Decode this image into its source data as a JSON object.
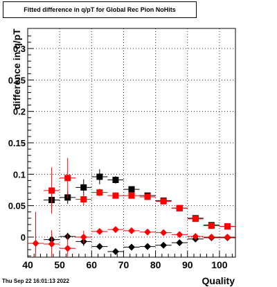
{
  "title": "Fitted difference in q/pT for Global Rec Pion NoHits",
  "timestamp": "Thu Sep 22 16:01:13 2022",
  "chart_data": {
    "type": "scatter",
    "title": "Fitted difference in q/pT for Global Rec Pion NoHits",
    "xlabel": "Quality",
    "ylabel": "difference in q/pT",
    "xlim": [
      40,
      105
    ],
    "ylim": [
      -0.032,
      0.332
    ],
    "x_ticks": [
      "40",
      "50",
      "60",
      "70",
      "80",
      "90",
      "100"
    ],
    "y_ticks": [
      "0",
      "0.05",
      "0.1",
      "0.15",
      "0.2",
      "0.25",
      "0.3"
    ],
    "grid": true,
    "series": [
      {
        "marker": "square",
        "color": "#000000",
        "x": [
          47.5,
          52.5,
          57.5,
          62.5,
          67.5,
          72.5,
          77.5,
          82.5,
          87.5,
          92.5,
          97.5,
          102.5
        ],
        "y": [
          0.059,
          0.063,
          0.079,
          0.096,
          0.091,
          0.076,
          0.066,
          0.058,
          0.046,
          0.03,
          0.019,
          0.017
        ],
        "yerr": [
          0.012,
          0.01,
          0.013,
          0.012,
          0.006,
          0.004,
          0.003,
          0.003,
          0.002,
          0.002,
          0.002,
          0.002
        ]
      },
      {
        "marker": "square",
        "color": "#ff0000",
        "x": [
          47.5,
          52.5,
          57.5,
          62.5,
          67.5,
          72.5,
          77.5,
          82.5,
          87.5,
          92.5,
          97.5,
          102.5
        ],
        "y": [
          0.074,
          0.094,
          0.06,
          0.071,
          0.066,
          0.066,
          0.064,
          0.057,
          0.046,
          0.029,
          0.018,
          0.017
        ],
        "yerr": [
          0.037,
          0.032,
          0.01,
          0.006,
          0.004,
          0.003,
          0.003,
          0.002,
          0.002,
          0.002,
          0.002,
          0.002
        ]
      },
      {
        "marker": "diamond",
        "color": "#000000",
        "x": [
          47.5,
          52.5,
          57.5,
          62.5,
          67.5,
          72.5,
          77.5,
          82.5,
          87.5,
          92.5,
          97.5,
          102.5
        ],
        "y": [
          -0.004,
          0.001,
          -0.007,
          -0.015,
          -0.023,
          -0.016,
          -0.015,
          -0.013,
          -0.009,
          -0.003,
          -0.001,
          -0.001
        ],
        "yerr": [
          0.009,
          0.006,
          0.007,
          0.005,
          0.004,
          0.003,
          0.002,
          0.002,
          0.002,
          0.002,
          0.002,
          0.002
        ]
      },
      {
        "marker": "diamond",
        "color": "#ff0000",
        "x": [
          42.5,
          47.5,
          52.5,
          57.5,
          62.5,
          67.5,
          72.5,
          77.5,
          82.5,
          87.5,
          92.5,
          97.5,
          102.5
        ],
        "y": [
          -0.01,
          -0.011,
          -0.018,
          0.0,
          0.009,
          0.012,
          0.01,
          0.008,
          0.007,
          0.004,
          0.001,
          0.0,
          0.0
        ],
        "yerr": [
          0.05,
          0.022,
          0.022,
          0.01,
          0.004,
          0.003,
          0.002,
          0.002,
          0.002,
          0.002,
          0.002,
          0.002,
          0.002
        ]
      }
    ]
  }
}
